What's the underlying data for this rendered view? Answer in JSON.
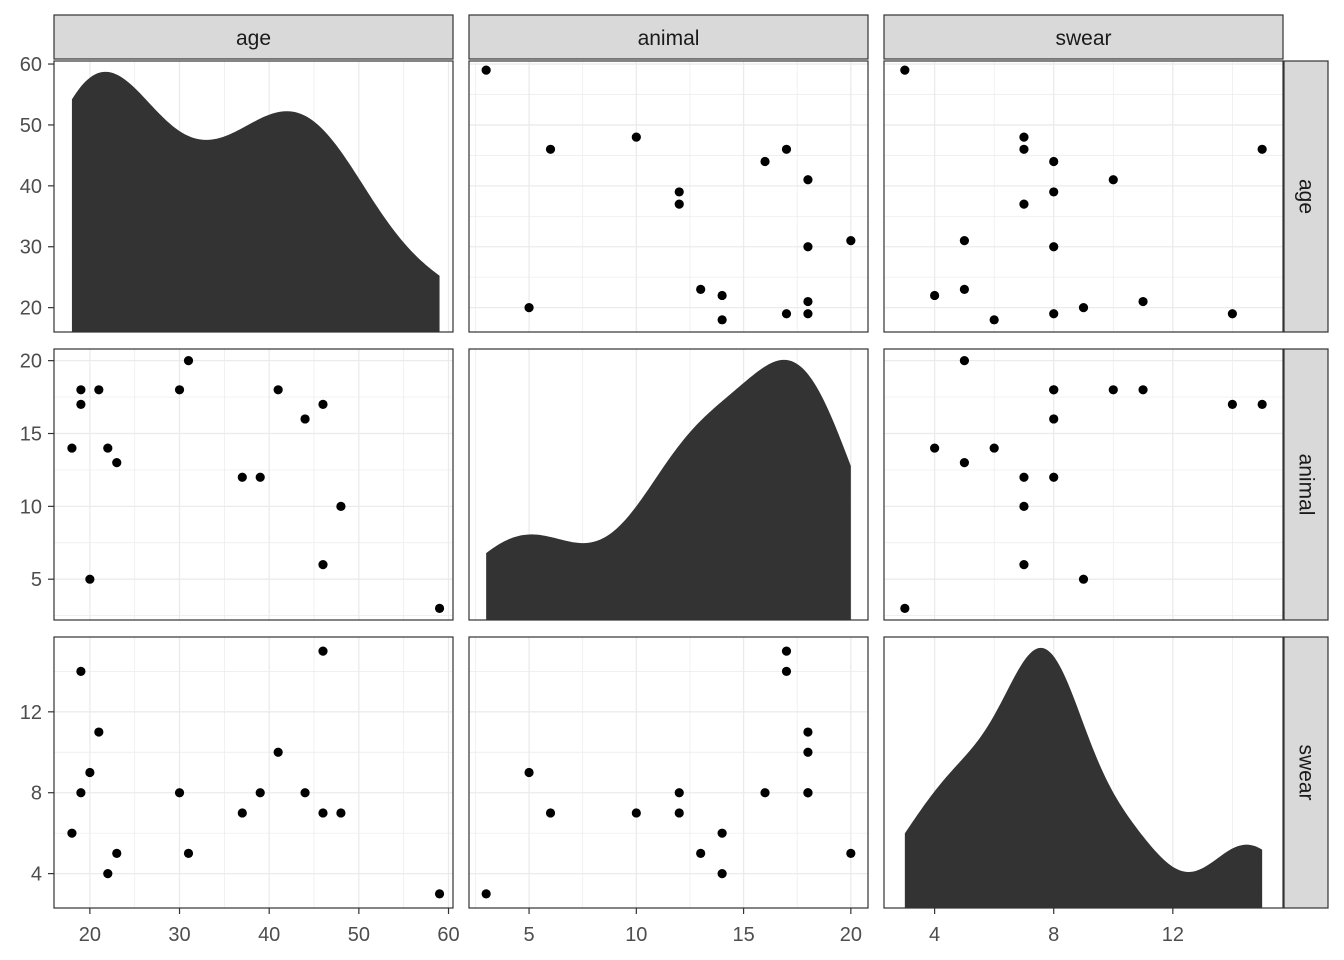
{
  "chart_data": {
    "type": "scatter",
    "variables": [
      "age",
      "animal",
      "swear"
    ],
    "observations": [
      {
        "age": 59,
        "animal": 3,
        "swear": 3
      },
      {
        "age": 20,
        "animal": 5,
        "swear": 9
      },
      {
        "age": 46,
        "animal": 6,
        "swear": 7
      },
      {
        "age": 48,
        "animal": 10,
        "swear": 7
      },
      {
        "age": 39,
        "animal": 12,
        "swear": 8
      },
      {
        "age": 37,
        "animal": 12,
        "swear": 7
      },
      {
        "age": 23,
        "animal": 13,
        "swear": 5
      },
      {
        "age": 22,
        "animal": 14,
        "swear": 4
      },
      {
        "age": 18,
        "animal": 14,
        "swear": 6
      },
      {
        "age": 44,
        "animal": 16,
        "swear": 8
      },
      {
        "age": 46,
        "animal": 17,
        "swear": 15
      },
      {
        "age": 19,
        "animal": 17,
        "swear": 14
      },
      {
        "age": 41,
        "animal": 18,
        "swear": 10
      },
      {
        "age": 30,
        "animal": 18,
        "swear": 8
      },
      {
        "age": 21,
        "animal": 18,
        "swear": 11
      },
      {
        "age": 19,
        "animal": 18,
        "swear": 8
      },
      {
        "age": 31,
        "animal": 20,
        "swear": 5
      }
    ],
    "ranges": {
      "age": [
        16,
        60.5
      ],
      "animal": [
        2.2,
        20.8
      ],
      "swear": [
        2.3,
        15.7
      ]
    },
    "ticks": {
      "age": [
        20,
        30,
        40,
        50,
        60
      ],
      "animal": [
        5,
        10,
        15,
        20
      ],
      "swear": [
        4,
        8,
        12
      ]
    },
    "diagonal": "density",
    "off_diagonal": "scatter",
    "grid": true,
    "legend": "none"
  },
  "labels": {
    "age": "age",
    "animal": "animal",
    "swear": "swear"
  },
  "colors": {
    "point": "#000000",
    "density_fill": "#333333",
    "strip_fill": "#d9d9d9",
    "panel_border": "#333333",
    "grid": "#ebebeb"
  }
}
